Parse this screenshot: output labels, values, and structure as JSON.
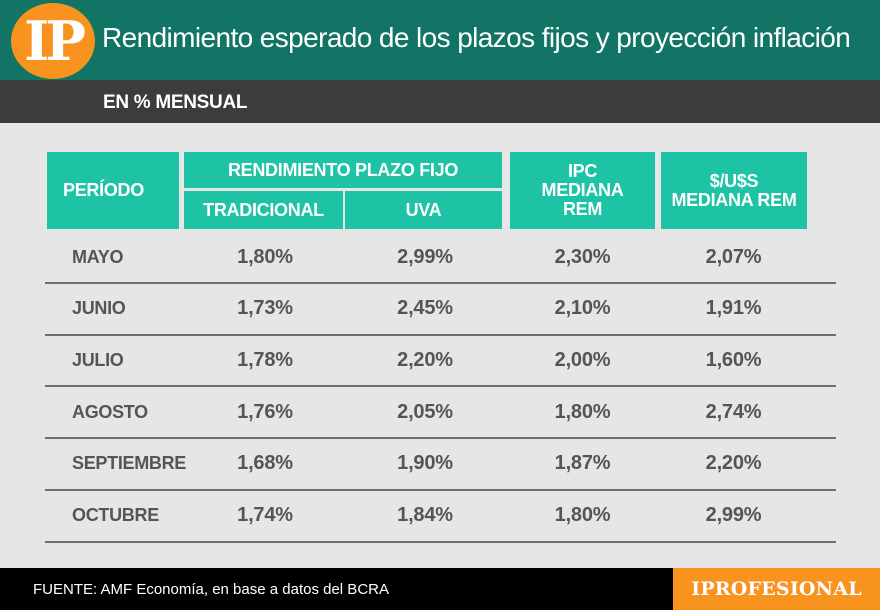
{
  "header": {
    "logo": "IP",
    "title": "Rendimiento esperado de los plazos fijos y proyección inflación",
    "subtitle": "EN % MENSUAL"
  },
  "chart_data": {
    "type": "table",
    "title": "Rendimiento esperado de los plazos fijos y proyección inflación",
    "subtitle": "EN % MENSUAL",
    "headers": {
      "period": "PERÍODO",
      "group": "RENDIMIENTO PLAZO FIJO",
      "tradicional": "TRADICIONAL",
      "uva": "UVA",
      "ipc": "IPC MEDIANA REM",
      "usd": "$/U$S MEDIANA REM"
    },
    "rows": [
      {
        "period": "MAYO",
        "tradicional": "1,80%",
        "uva": "2,99%",
        "ipc": "2,30%",
        "usd": "2,07%"
      },
      {
        "period": "JUNIO",
        "tradicional": "1,73%",
        "uva": "2,45%",
        "ipc": "2,10%",
        "usd": "1,91%"
      },
      {
        "period": "JULIO",
        "tradicional": "1,78%",
        "uva": "2,20%",
        "ipc": "2,00%",
        "usd": "1,60%"
      },
      {
        "period": "AGOSTO",
        "tradicional": "1,76%",
        "uva": "2,05%",
        "ipc": "1,80%",
        "usd": "2,74%"
      },
      {
        "period": "SEPTIEMBRE",
        "tradicional": "1,68%",
        "uva": "1,90%",
        "ipc": "1,87%",
        "usd": "2,20%"
      },
      {
        "period": "OCTUBRE",
        "tradicional": "1,74%",
        "uva": "1,84%",
        "ipc": "1,80%",
        "usd": "2,99%"
      }
    ]
  },
  "footer": {
    "source": "FUENTE: AMF Economía, en base a datos del BCRA",
    "brand": "IPROFESIONAL"
  },
  "colors": {
    "header_bg": "#127464",
    "subheader_bg": "#3c3c3c",
    "table_header_bg": "#1ec3a6",
    "accent_orange": "#f7931e",
    "page_bg": "#e6e6e6",
    "cell_text": "#555555"
  }
}
